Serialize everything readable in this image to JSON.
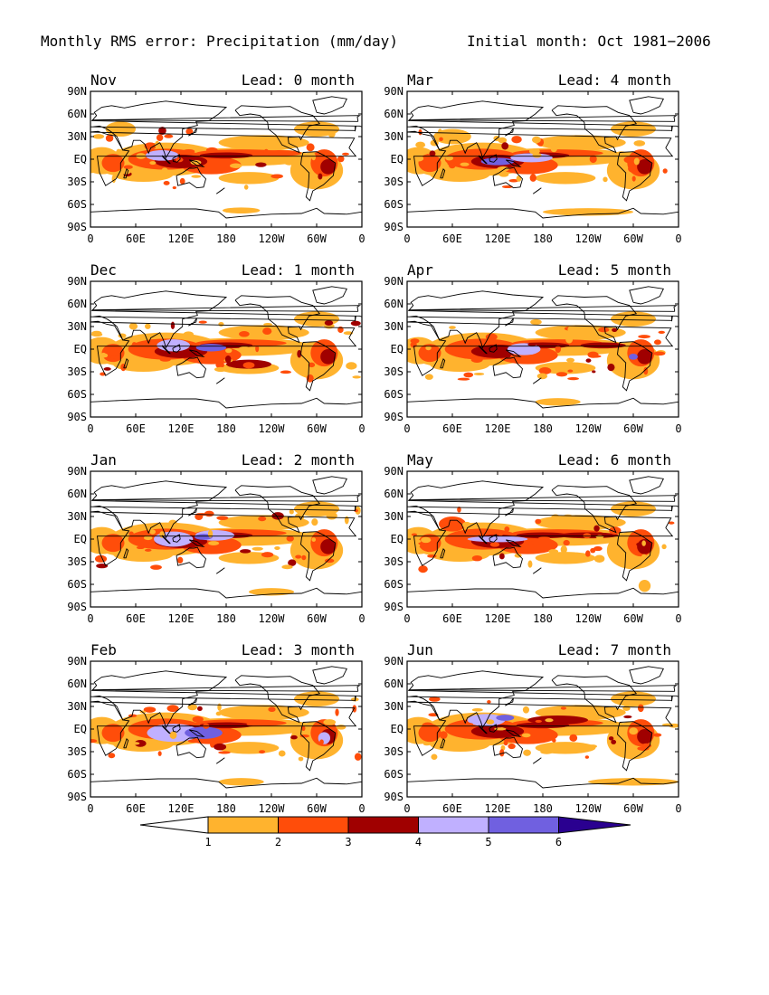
{
  "header": {
    "title": "Monthly RMS error: Precipitation (mm/day)",
    "initial": "Initial month: Oct 1981−2006"
  },
  "axes": {
    "lat_labels": [
      "90N",
      "60N",
      "30N",
      "EQ",
      "30S",
      "60S",
      "90S"
    ],
    "lon_labels": [
      "0",
      "60E",
      "120E",
      "180",
      "120W",
      "60W",
      "0"
    ]
  },
  "panels": [
    {
      "month": "Nov",
      "lead": "Lead: 0 month"
    },
    {
      "month": "Mar",
      "lead": "Lead: 4 month"
    },
    {
      "month": "Dec",
      "lead": "Lead: 1 month"
    },
    {
      "month": "Apr",
      "lead": "Lead: 5 month"
    },
    {
      "month": "Jan",
      "lead": "Lead: 2 month"
    },
    {
      "month": "May",
      "lead": "Lead: 6 month"
    },
    {
      "month": "Feb",
      "lead": "Lead: 3 month"
    },
    {
      "month": "Jun",
      "lead": "Lead: 7 month"
    }
  ],
  "colorbar": {
    "levels": [
      "1",
      "2",
      "3",
      "4",
      "5",
      "6"
    ],
    "colors": [
      "#ffffff",
      "#ffb32e",
      "#ff4d0a",
      "#a00000",
      "#c0b0ff",
      "#7060e0",
      "#2a0090"
    ]
  }
}
